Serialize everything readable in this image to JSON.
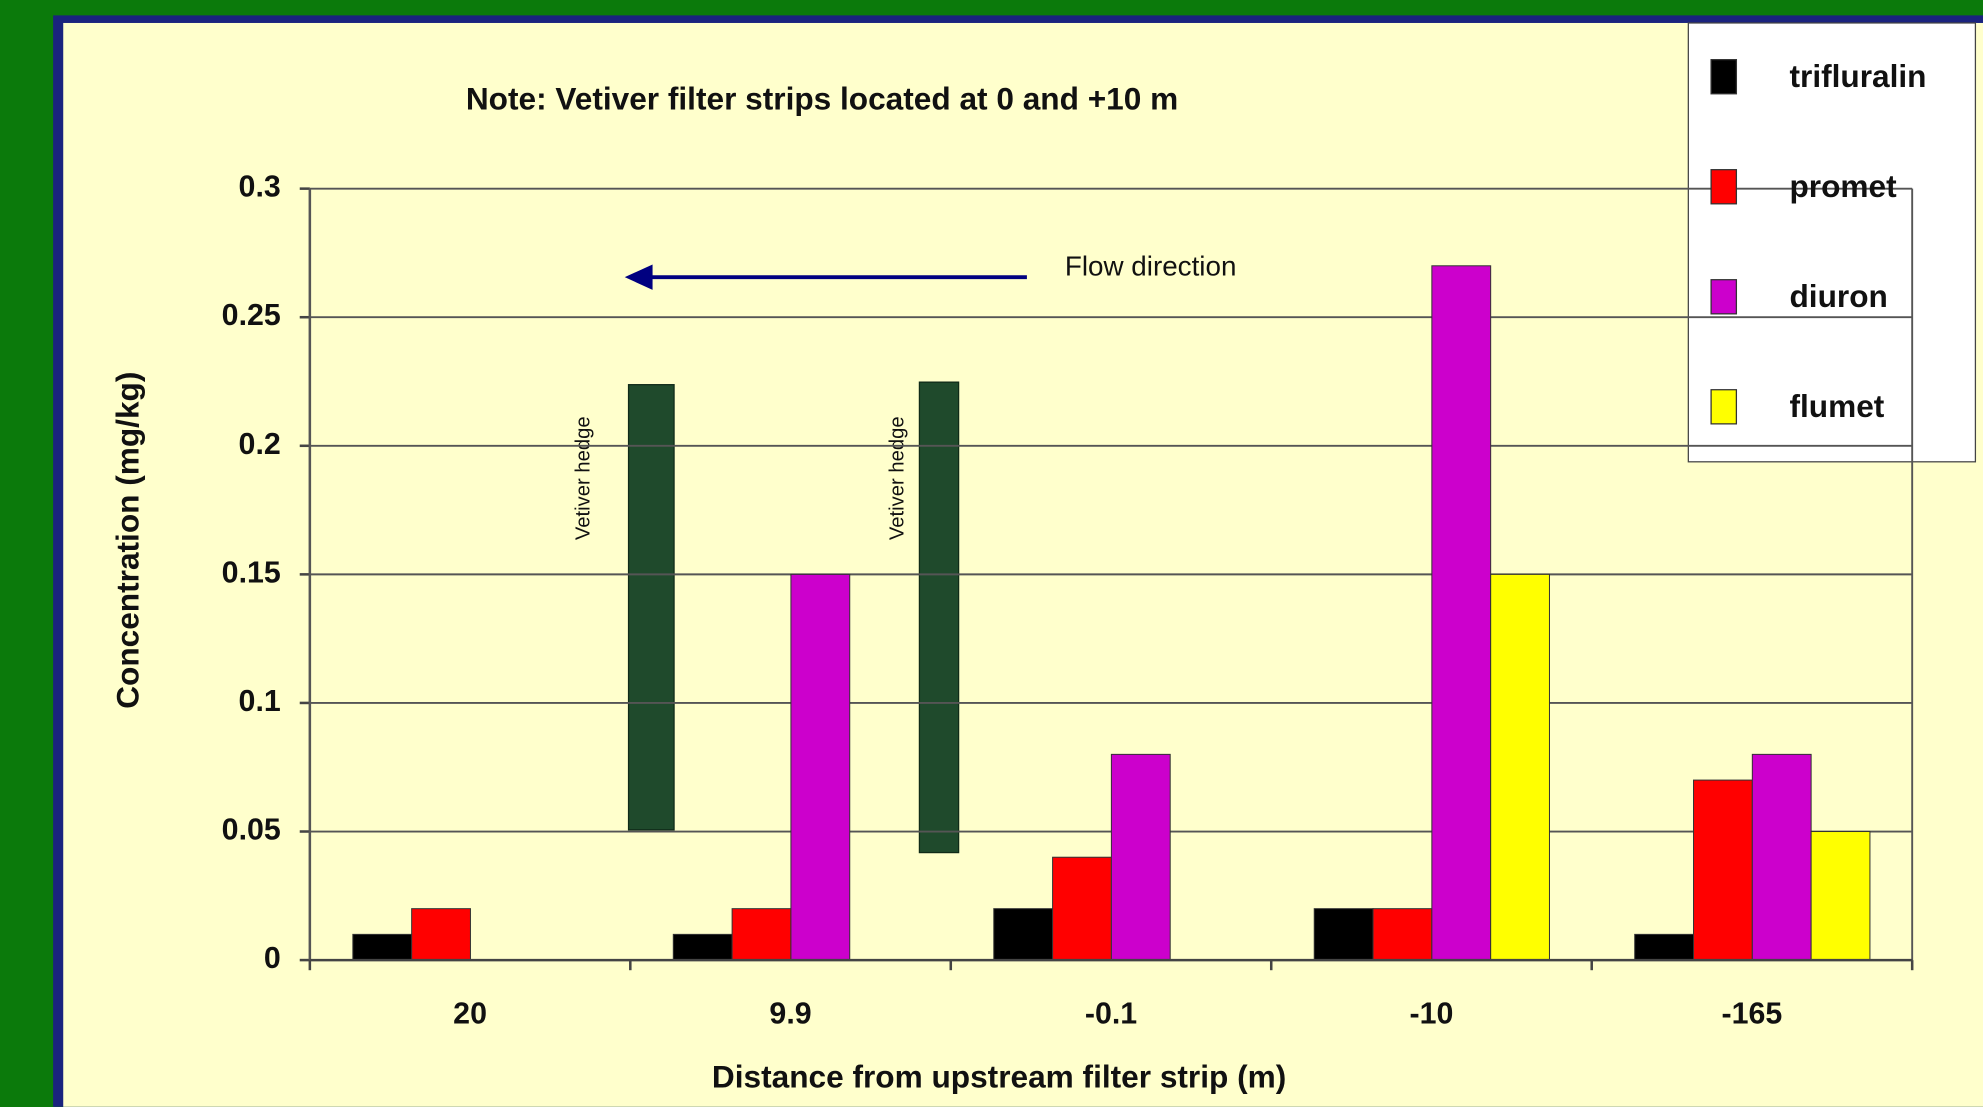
{
  "chart_data": {
    "type": "bar",
    "note": "Note: Vetiver filter strips located at 0 and +10 m",
    "x_label": "Distance from upstream  filter strip (m)",
    "y_label": "Concentration (mg/kg)",
    "annotations": [
      "Flow direction",
      "Vetiver hedge",
      "Vetiver hedge"
    ],
    "categories": [
      "20",
      "9.9",
      "-0.1",
      "-10",
      "-165"
    ],
    "series": [
      {
        "name": "trifluralin",
        "color": "#000000",
        "values": [
          0.01,
          0.01,
          0.02,
          0.02,
          0.01
        ]
      },
      {
        "name": "promet",
        "color": "#ff0000",
        "values": [
          0.02,
          0.02,
          0.04,
          0.02,
          0.07
        ]
      },
      {
        "name": "diuron",
        "color": "#cc00cc",
        "values": [
          null,
          0.15,
          0.08,
          0.27,
          0.08
        ]
      },
      {
        "name": "flumet",
        "color": "#ffff00",
        "values": [
          null,
          null,
          null,
          0.15,
          0.05
        ]
      }
    ],
    "ylim": [
      0,
      0.3
    ],
    "yticks": [
      0,
      0.05,
      0.1,
      0.15,
      0.2,
      0.25,
      0.3
    ],
    "grid": true,
    "legend": "upper right"
  }
}
